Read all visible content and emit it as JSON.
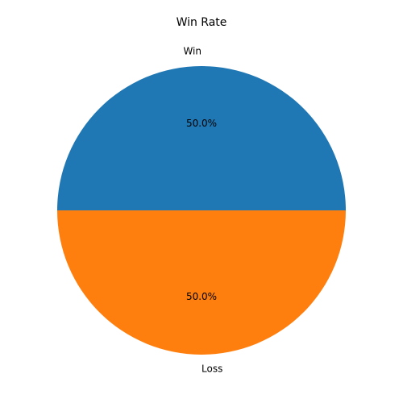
{
  "chart_data": {
    "type": "pie",
    "title": "Win Rate",
    "categories": [
      "Win",
      "Loss"
    ],
    "values": [
      50,
      50
    ],
    "value_labels": [
      "50.0%",
      "50.0%"
    ],
    "colors": [
      "#1f77b4",
      "#ff7f0e"
    ]
  }
}
